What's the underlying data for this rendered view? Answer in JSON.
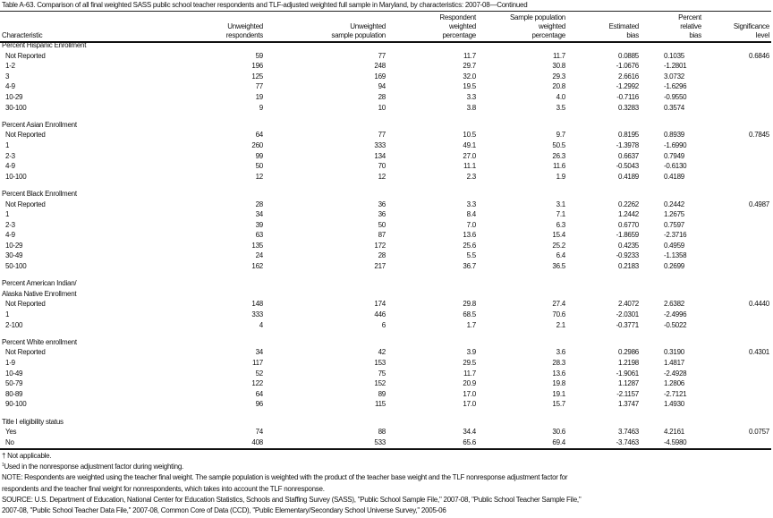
{
  "title": "Table A-63. Comparison of all final weighted SASS public school teacher respondents and TLF-adjusted weighted full sample in Maryland, by characteristics: 2007-08—Continued",
  "columns": [
    [
      "Characteristic"
    ],
    [
      "Unweighted",
      "respondents"
    ],
    [
      "Unweighted",
      "sample population"
    ],
    [
      "Respondent",
      "weighted",
      "percentage"
    ],
    [
      "Sample population",
      "weighted",
      "percentage"
    ],
    [
      "Estimated",
      "bias"
    ],
    [
      "Percent",
      "relative",
      "bias"
    ],
    [
      "Significance",
      "level"
    ]
  ],
  "sections": [
    {
      "heading": [
        "Percent Hispanic Enrollment"
      ],
      "rows": [
        [
          "Not Reported",
          "59",
          "77",
          "11.7",
          "11.7",
          "0.0885",
          "0.1035",
          "0.6846"
        ],
        [
          "1-2",
          "196",
          "248",
          "29.7",
          "30.8",
          "-1.0676",
          "-1.2801",
          ""
        ],
        [
          "3",
          "125",
          "169",
          "32.0",
          "29.3",
          "2.6616",
          "3.0732",
          ""
        ],
        [
          "4-9",
          "77",
          "94",
          "19.5",
          "20.8",
          "-1.2992",
          "-1.6296",
          ""
        ],
        [
          "10-29",
          "19",
          "28",
          "3.3",
          "4.0",
          "-0.7116",
          "-0.9550",
          ""
        ],
        [
          "30-100",
          "9",
          "10",
          "3.8",
          "3.5",
          "0.3283",
          "0.3574",
          ""
        ]
      ]
    },
    {
      "heading": [
        "Percent Asian Enrollment"
      ],
      "rows": [
        [
          "Not Reported",
          "64",
          "77",
          "10.5",
          "9.7",
          "0.8195",
          "0.8939",
          "0.7845"
        ],
        [
          "1",
          "260",
          "333",
          "49.1",
          "50.5",
          "-1.3978",
          "-1.6990",
          ""
        ],
        [
          "2-3",
          "99",
          "134",
          "27.0",
          "26.3",
          "0.6637",
          "0.7949",
          ""
        ],
        [
          "4-9",
          "50",
          "70",
          "11.1",
          "11.6",
          "-0.5043",
          "-0.6130",
          ""
        ],
        [
          "10-100",
          "12",
          "12",
          "2.3",
          "1.9",
          "0.4189",
          "0.4189",
          ""
        ]
      ]
    },
    {
      "heading": [
        "Percent Black Enrollment"
      ],
      "rows": [
        [
          "Not Reported",
          "28",
          "36",
          "3.3",
          "3.1",
          "0.2262",
          "0.2442",
          "0.4987"
        ],
        [
          "1",
          "34",
          "36",
          "8.4",
          "7.1",
          "1.2442",
          "1.2675",
          ""
        ],
        [
          "2-3",
          "39",
          "50",
          "7.0",
          "6.3",
          "0.6770",
          "0.7597",
          ""
        ],
        [
          "4-9",
          "63",
          "87",
          "13.6",
          "15.4",
          "-1.8659",
          "-2.3716",
          ""
        ],
        [
          "10-29",
          "135",
          "172",
          "25.6",
          "25.2",
          "0.4235",
          "0.4959",
          ""
        ],
        [
          "30-49",
          "24",
          "28",
          "5.5",
          "6.4",
          "-0.9233",
          "-1.1358",
          ""
        ],
        [
          "50-100",
          "162",
          "217",
          "36.7",
          "36.5",
          "0.2183",
          "0.2699",
          ""
        ]
      ]
    },
    {
      "heading": [
        "Percent American Indian/",
        "Alaska Native Enrollment"
      ],
      "rows": [
        [
          "Not Reported",
          "148",
          "174",
          "29.8",
          "27.4",
          "2.4072",
          "2.6382",
          "0.4440"
        ],
        [
          "1",
          "333",
          "446",
          "68.5",
          "70.6",
          "-2.0301",
          "-2.4996",
          ""
        ],
        [
          "2-100",
          "4",
          "6",
          "1.7",
          "2.1",
          "-0.3771",
          "-0.5022",
          ""
        ]
      ]
    },
    {
      "heading": [
        "Percent White enrollment"
      ],
      "rows": [
        [
          "Not Reported",
          "34",
          "42",
          "3.9",
          "3.6",
          "0.2986",
          "0.3190",
          "0.4301"
        ],
        [
          "1-9",
          "117",
          "153",
          "29.5",
          "28.3",
          "1.2198",
          "1.4817",
          ""
        ],
        [
          "10-49",
          "52",
          "75",
          "11.7",
          "13.6",
          "-1.9061",
          "-2.4928",
          ""
        ],
        [
          "50-79",
          "122",
          "152",
          "20.9",
          "19.8",
          "1.1287",
          "1.2806",
          ""
        ],
        [
          "80-89",
          "64",
          "89",
          "17.0",
          "19.1",
          "-2.1157",
          "-2.7121",
          ""
        ],
        [
          "90-100",
          "96",
          "115",
          "17.0",
          "15.7",
          "1.3747",
          "1.4930",
          ""
        ]
      ]
    },
    {
      "heading": [
        "Title I eligibility status"
      ],
      "rows": [
        [
          "Yes",
          "74",
          "88",
          "34.4",
          "30.6",
          "3.7463",
          "4.2161",
          "0.0757"
        ],
        [
          "No",
          "408",
          "533",
          "65.6",
          "69.4",
          "-3.7463",
          "-4.5980",
          ""
        ]
      ]
    }
  ],
  "footnotes": {
    "dagger": "† Not applicable.",
    "note1_mark": "1",
    "note1": "Used in the nonresponse adjustment factor during weighting.",
    "note": "NOTE: Respondents are weighted using the teacher final weight. The sample population is weighted with the product of the teacher base weight and the TLF nonresponse adjustment factor for",
    "note_cont": "respondents and the teacher final weight for nonrespondents, which takes into account the TLF nonresponse.",
    "source": "SOURCE: U.S. Department of Education, National Center for Education Statistics, Schools and Staffing Survey (SASS), \"Public School Sample File,\" 2007-08, \"Public School Teacher Sample File,\"",
    "source_cont": "2007-08, \"Public School Teacher Data File,\" 2007-08, Common Core of Data (CCD), \"Public Elementary/Secondary School Universe Survey,\" 2005-06"
  }
}
